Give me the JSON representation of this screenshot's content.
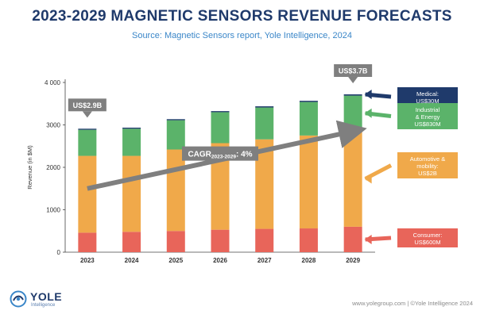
{
  "header": {
    "title": "2023-2029 MAGNETIC SENSORS REVENUE FORECASTS",
    "subtitle": "Source: Magnetic Sensors report, Yole Intelligence, 2024"
  },
  "chart_data": {
    "type": "bar",
    "stacked": true,
    "categories": [
      "2023",
      "2024",
      "2025",
      "2026",
      "2027",
      "2028",
      "2029"
    ],
    "series": [
      {
        "key": "consumer",
        "values": [
          460,
          480,
          500,
          530,
          550,
          560,
          600
        ],
        "color": "#e8655a"
      },
      {
        "key": "automotive",
        "values": [
          1810,
          1790,
          1920,
          2040,
          2110,
          2190,
          2260
        ],
        "color": "#f0a94a"
      },
      {
        "key": "industrial",
        "values": [
          615,
          640,
          690,
          730,
          750,
          790,
          830
        ],
        "color": "#5bb36a"
      },
      {
        "key": "medical",
        "values": [
          25,
          25,
          25,
          25,
          28,
          28,
          30
        ],
        "color": "#1f3a6b"
      }
    ],
    "ylabel": "Revenue (in $M)",
    "ylim": [
      0,
      4000
    ],
    "yticks": [
      0,
      1000,
      2000,
      3000,
      4000
    ],
    "ytick_labels": [
      "0",
      "1000",
      "2000",
      "3000",
      "4 000"
    ],
    "grid": false,
    "callouts": [
      {
        "category": "2023",
        "text": "US$2.9B"
      },
      {
        "category": "2029",
        "text": "US$3.7B"
      }
    ],
    "cagr": {
      "from": "2023",
      "to": "2029",
      "from_value": 1500,
      "to_value": 2850,
      "label_main": "CAGR",
      "label_sub": "2023-2029",
      "label_value": ": 4%"
    },
    "segment_labels": [
      {
        "series": "medical",
        "lines": [
          "Medical:",
          "US$30M"
        ],
        "color": "#1f3a6b"
      },
      {
        "series": "industrial",
        "lines": [
          "Industrial",
          "& Energy",
          "US$830M"
        ],
        "color": "#5bb36a"
      },
      {
        "series": "automotive",
        "lines": [
          "Automotive &",
          "mobility:",
          "US$2B"
        ],
        "color": "#f0a94a"
      },
      {
        "series": "consumer",
        "lines": [
          "Consumer:",
          "US$600M"
        ],
        "color": "#e8655a"
      }
    ]
  },
  "brand": {
    "name": "YOLE",
    "sub": "Intelligence",
    "footer": "www.yolegroup.com | ©Yole Intelligence 2024"
  },
  "colors": {
    "title": "#1f3a6b",
    "subtitle": "#3a86c8",
    "callout": "#7f7f7f",
    "axis": "#444444"
  }
}
